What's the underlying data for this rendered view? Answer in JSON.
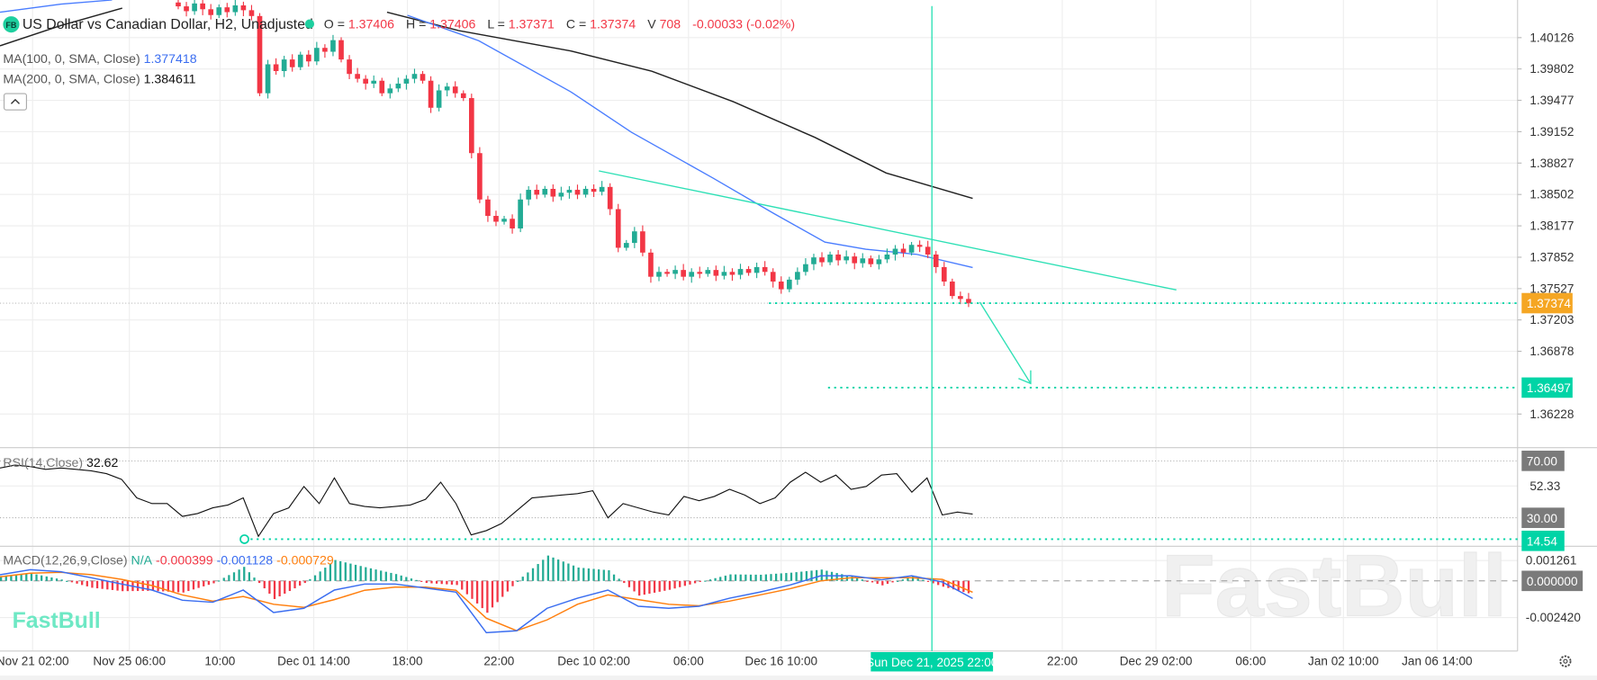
{
  "header": {
    "logo": "FB",
    "symbol_title": "US Dollar vs Canadian Dollar, H2, Unadjusted",
    "open_label": "O =",
    "open": "1.37406",
    "high_label": "H =",
    "high": "1.37406",
    "low_label": "L =",
    "low": "1.37371",
    "close_label": "C =",
    "close": "1.37374",
    "volume_label": "V",
    "volume": "708",
    "change": "-0.00033 (-0.02%)"
  },
  "indicators": {
    "ma100_label": "MA(100, 0, SMA, Close)",
    "ma100_value": "1.377418",
    "ma200_label": "MA(200, 0, SMA, Close)",
    "ma200_value": "1.384611",
    "collapse_icon": "chevron-up-icon",
    "rsi_label": "RSI(14,Close)",
    "rsi_value": "32.62",
    "macd_label": "MACD(12,26,9,Close)",
    "macd_na": "N/A",
    "macd_hist_value": "-0.000399",
    "macd_value": "-0.001128",
    "macd_signal_value": "-0.000729"
  },
  "price_axis": {
    "ticks": [
      "1.40126",
      "1.39802",
      "1.39477",
      "1.39152",
      "1.38827",
      "1.38502",
      "1.38177",
      "1.37852",
      "1.37527",
      "1.37203",
      "1.36878",
      "1.36228"
    ],
    "current_price": "1.37374",
    "target_price": "1.36497"
  },
  "rsi_axis": {
    "ticks": [
      "70.00",
      "52.33",
      "30.00"
    ],
    "marker": "14.54"
  },
  "macd_axis": {
    "ticks": [
      "0.001261",
      "0.000000",
      "-0.002420"
    ]
  },
  "time_axis": {
    "labels": [
      "Nov 21 02:00",
      "Nov 25 06:00",
      "10:00",
      "Dec 01 14:00",
      "18:00",
      "22:00",
      "Dec 10 02:00",
      "06:00",
      "Dec 16 10:00",
      "22:00",
      "Dec 29 02:00",
      "06:00",
      "Jan 02 10:00",
      "Jan 06 14:00"
    ],
    "crosshair_label": "Sun Dec 21, 2025 22:00",
    "settings_icon": "gear-icon"
  },
  "watermark": "FastBull",
  "brand_logo": "FastBull",
  "colors": {
    "up": "#22ab94",
    "down": "#f23645",
    "ma100": "#4a7dff",
    "ma200": "#222222",
    "accent": "#00d4a6",
    "current_price_bg": "#f5a623",
    "macd": "#3a6df0",
    "signal": "#ff7f0e"
  },
  "chart_data": [
    {
      "type": "candlestick",
      "title": "US Dollar vs Canadian Dollar, H2, Unadjusted",
      "ylim": [
        1.3595,
        1.4055
      ],
      "closes": [
        1.4045,
        1.404,
        1.4048,
        1.4042,
        1.4036,
        1.4044,
        1.4039,
        1.4046,
        1.4041,
        1.4035,
        1.3955,
        1.3985,
        1.3978,
        1.399,
        1.3982,
        1.3995,
        1.3988,
        1.4002,
        1.3998,
        1.401,
        1.399,
        1.3975,
        1.397,
        1.3965,
        1.3968,
        1.3955,
        1.396,
        1.3965,
        1.397,
        1.3975,
        1.3968,
        1.394,
        1.3958,
        1.3962,
        1.3955,
        1.395,
        1.3893,
        1.3845,
        1.3828,
        1.3822,
        1.3825,
        1.3815,
        1.3845,
        1.3855,
        1.385,
        1.3856,
        1.3848,
        1.3852,
        1.3855,
        1.385,
        1.3856,
        1.3853,
        1.3858,
        1.3835,
        1.3795,
        1.38,
        1.3812,
        1.379,
        1.3765,
        1.377,
        1.3768,
        1.3772,
        1.3765,
        1.377,
        1.3768,
        1.3772,
        1.3766,
        1.377,
        1.3767,
        1.3773,
        1.3769,
        1.3775,
        1.377,
        1.376,
        1.3752,
        1.3762,
        1.377,
        1.3778,
        1.3785,
        1.378,
        1.3788,
        1.3782,
        1.3786,
        1.3779,
        1.3784,
        1.3778,
        1.3783,
        1.3788,
        1.3794,
        1.379,
        1.3798,
        1.3796,
        1.3788,
        1.3775,
        1.376,
        1.3745,
        1.3742,
        1.37374
      ],
      "annotations": {
        "trendline": "descending resistance",
        "target_level": 1.36497,
        "current_level": 1.37374,
        "arrow": "down"
      }
    },
    {
      "type": "line",
      "title": "RSI(14,Close)",
      "ylim": [
        0,
        100
      ],
      "levels": [
        70,
        30,
        14.54
      ],
      "values": [
        65,
        67,
        66,
        64,
        65,
        64,
        63,
        61,
        57,
        44,
        40,
        40,
        31,
        33,
        37,
        39,
        44,
        17,
        33,
        37,
        52,
        40,
        58,
        40,
        38,
        37,
        38,
        39,
        43,
        55,
        40,
        18,
        21,
        26,
        35,
        44,
        45,
        46,
        47,
        49,
        30,
        40,
        37,
        34,
        32,
        45,
        42,
        45,
        50,
        46,
        40,
        44,
        55,
        62,
        55,
        60,
        50,
        52,
        60,
        61,
        48,
        58,
        32,
        34,
        32.62
      ]
    },
    {
      "type": "line",
      "title": "MACD(12,26,9,Close)",
      "ylim": [
        -0.0037,
        0.0017
      ],
      "series": [
        {
          "name": "MACD",
          "values": [
            0.00039,
            0.00072,
            0.00059,
            0.0002,
            -0.0002,
            -0.00059,
            -0.00124,
            -0.00137,
            -0.00059,
            -0.00203,
            -0.00176,
            -0.00059,
            -0.0002,
            -0.0002,
            -0.00046,
            -0.00072,
            -0.00333,
            -0.0032,
            -0.00176,
            -0.00111,
            -0.00059,
            -0.00163,
            -0.00176,
            -0.00163,
            -0.00111,
            -0.00072,
            -0.00026,
            0.00033,
            0.00033,
            7e-05,
            0.00033,
            -7e-05,
            -0.001128
          ]
        },
        {
          "name": "Signal",
          "values": [
            0.00026,
            0.0005,
            0.00055,
            0.0004,
            0.0001,
            -0.0003,
            -0.0009,
            -0.0013,
            -0.001,
            -0.0015,
            -0.0017,
            -0.0012,
            -0.0006,
            -0.0004,
            -0.0004,
            -0.0006,
            -0.0024,
            -0.0032,
            -0.0025,
            -0.0015,
            -0.0009,
            -0.0012,
            -0.0015,
            -0.0016,
            -0.0013,
            -0.0009,
            -0.0005,
            0.0,
            0.0002,
            0.0002,
            0.0002,
            0.0001,
            -0.000729
          ]
        }
      ]
    }
  ]
}
